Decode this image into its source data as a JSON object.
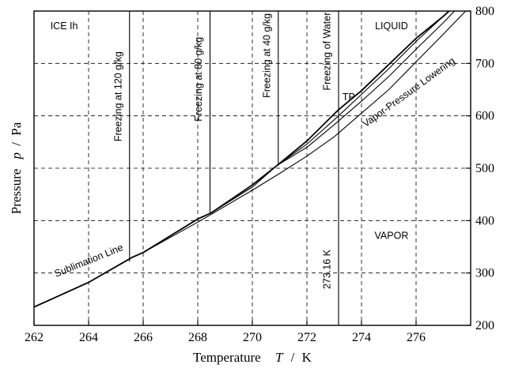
{
  "chart_data": {
    "type": "line",
    "title": "",
    "xlabel": {
      "name": "Temperature",
      "symbol": "T",
      "unit": "K"
    },
    "ylabel": {
      "name": "Pressure",
      "symbol": "p",
      "unit": "Pa"
    },
    "xlim": [
      262,
      278
    ],
    "ylim": [
      200,
      800
    ],
    "xticks": [
      262,
      264,
      266,
      268,
      270,
      272,
      274,
      276
    ],
    "yticks": [
      200,
      300,
      400,
      500,
      600,
      700,
      800
    ],
    "grid": true,
    "y_axis_side": "right",
    "series": [
      {
        "name": "Sublimation Line",
        "kind": "curve",
        "style": "bold",
        "points": [
          [
            262,
            235
          ],
          [
            264,
            282
          ],
          [
            265.6,
            330
          ],
          [
            266,
            339
          ],
          [
            268,
            403
          ],
          [
            268.5,
            415
          ],
          [
            270,
            468
          ],
          [
            270.9,
            505
          ],
          [
            272,
            552
          ],
          [
            273.16,
            611.657
          ],
          [
            274,
            648
          ],
          [
            275,
            698
          ],
          [
            276,
            748
          ],
          [
            277,
            790
          ],
          [
            277.5,
            814
          ]
        ]
      },
      {
        "name": "Vapor-Pressure Lowering",
        "kind": "curve",
        "style": "thin",
        "points": [
          [
            265.6,
            330
          ],
          [
            266,
            339
          ],
          [
            268,
            397
          ],
          [
            270,
            458
          ],
          [
            271,
            490
          ],
          [
            272,
            523
          ],
          [
            273,
            560
          ],
          [
            274,
            605
          ],
          [
            275,
            650
          ],
          [
            276,
            703
          ],
          [
            277,
            756
          ],
          [
            278,
            810
          ]
        ]
      },
      {
        "name": "",
        "kind": "curve",
        "style": "thin",
        "points": [
          [
            268.5,
            415
          ],
          [
            270,
            464
          ],
          [
            270.9,
            505
          ],
          [
            272,
            540
          ],
          [
            273,
            583
          ],
          [
            274,
            628
          ],
          [
            275,
            675
          ],
          [
            276,
            727
          ],
          [
            277,
            778
          ],
          [
            277.5,
            805
          ]
        ]
      },
      {
        "name": "",
        "kind": "curve",
        "style": "thin",
        "points": [
          [
            270.9,
            505
          ],
          [
            272,
            546
          ],
          [
            273.16,
            600
          ],
          [
            274,
            641
          ],
          [
            275,
            690
          ],
          [
            276,
            742
          ],
          [
            277,
            790
          ],
          [
            277.6,
            820
          ]
        ]
      },
      {
        "name": "Freezing at 120 g/kg",
        "kind": "vertical",
        "x": 265.5,
        "y_from": 322,
        "y_to": 800
      },
      {
        "name": "Freezing at 80 g/kg",
        "kind": "vertical",
        "x": 268.45,
        "y_from": 413,
        "y_to": 800
      },
      {
        "name": "Freezing at 40 g/kg",
        "kind": "vertical",
        "x": 270.95,
        "y_from": 505,
        "y_to": 800
      },
      {
        "name": "Freezing of Water",
        "kind": "vertical",
        "style": "bold",
        "x": 273.16,
        "y_from": 611.657,
        "y_to": 800
      },
      {
        "name": "273.16 K",
        "kind": "vertical",
        "x": 273.16,
        "y_from": 200,
        "y_to": 611.657
      }
    ],
    "annotations": [
      {
        "text": "ICE Ih",
        "x": 262.6,
        "y": 765,
        "anchor": "start",
        "rotate": 0
      },
      {
        "text": "LIQUID",
        "x": 275.1,
        "y": 765,
        "anchor": "middle",
        "rotate": 0
      },
      {
        "text": "VAPOR",
        "x": 275.1,
        "y": 365,
        "anchor": "middle",
        "rotate": 0
      },
      {
        "text": "TP",
        "x": 273.3,
        "y": 630,
        "anchor": "start",
        "rotate": 0
      },
      {
        "text": "Sublimation Line",
        "x": 264.05,
        "y": 318,
        "anchor": "middle",
        "rotate": -22
      },
      {
        "text": "Vapor-Pressure Lowering",
        "x": 275.8,
        "y": 640,
        "anchor": "middle",
        "rotate": -36
      },
      {
        "text": "Freezing at 120 g/kg",
        "x": 265.2,
        "y": 637,
        "anchor": "middle",
        "rotate": -90
      },
      {
        "text": "Freezing at 80 g/kg",
        "x": 268.15,
        "y": 670,
        "anchor": "middle",
        "rotate": -90
      },
      {
        "text": "Freezing at 40 g/kg",
        "x": 270.65,
        "y": 715,
        "anchor": "middle",
        "rotate": -90
      },
      {
        "text": "Freezing of Water",
        "x": 272.85,
        "y": 723,
        "anchor": "middle",
        "rotate": -90
      },
      {
        "text": "273.16 K",
        "x": 272.85,
        "y": 307,
        "anchor": "middle",
        "rotate": -90
      }
    ]
  }
}
